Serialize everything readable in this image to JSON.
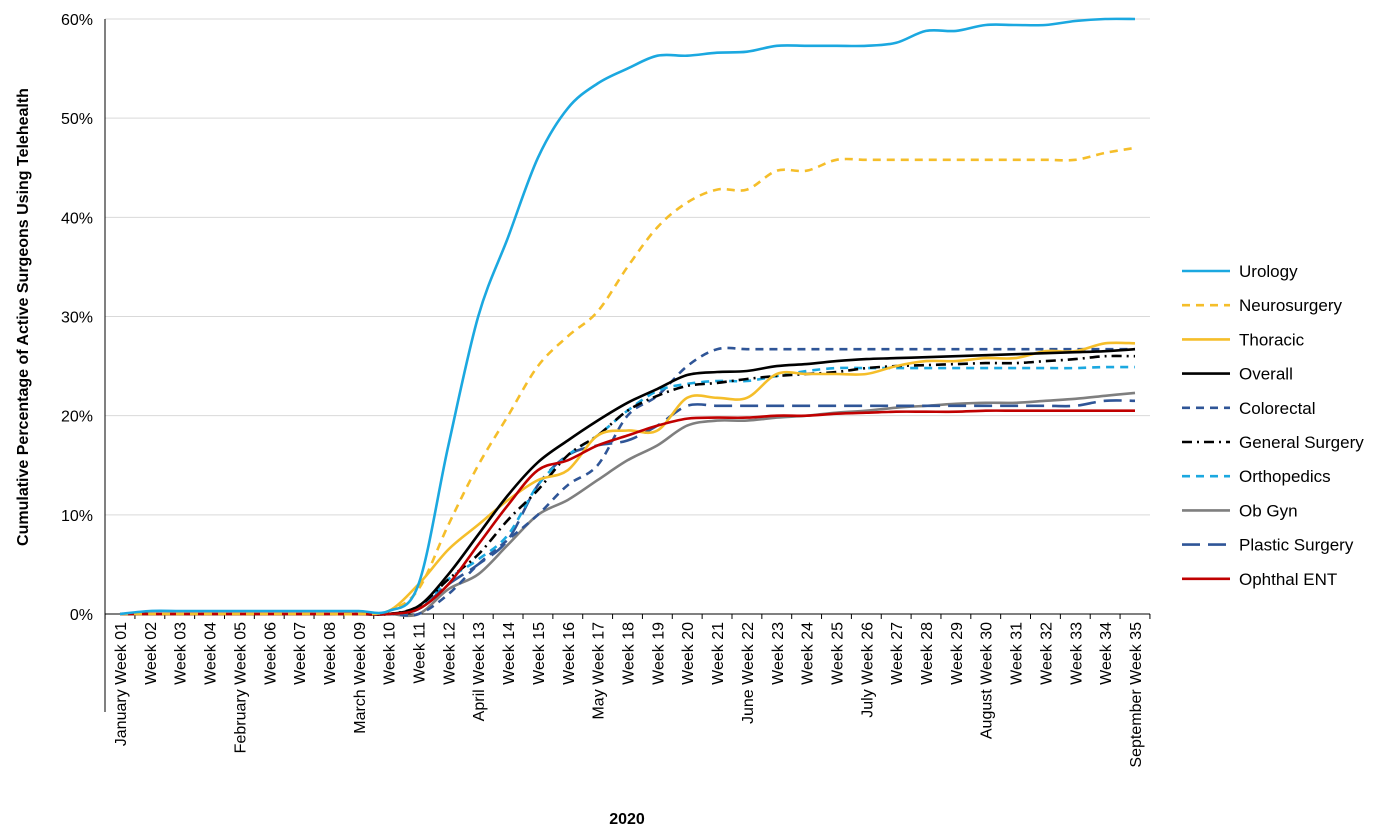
{
  "chart_data": {
    "type": "line",
    "title": "",
    "xlabel": "2020",
    "ylabel": "Cumulative Percentage of Active Surgeons Using Telehealth",
    "ylim": [
      0,
      60
    ],
    "y_ticks": [
      "0%",
      "10%",
      "20%",
      "30%",
      "40%",
      "50%",
      "60%"
    ],
    "grid": "horizontal",
    "legend_position": "right",
    "x_ticks": [
      "January Week 01",
      "Week 02",
      "Week 03",
      "Week 04",
      "February Week 05",
      "Week 06",
      "Week 07",
      "Week 08",
      "March Week 09",
      "Week 10",
      "Week 11",
      "Week 12",
      "April Week 13",
      "Week 14",
      "Week 15",
      "Week 16",
      "May Week 17",
      "Week 18",
      "Week 19",
      "Week 20",
      "Week 21",
      "June Week 22",
      "Week 23",
      "Week 24",
      "Week 25",
      "July Week 26",
      "Week 27",
      "Week 28",
      "Week 29",
      "August Week 30",
      "Week 31",
      "Week 32",
      "Week 33",
      "Week 34",
      "September Week 35"
    ],
    "series": [
      {
        "name": "Urology",
        "color": "#1ba8e0",
        "dash": "solid",
        "values": [
          0,
          0.3,
          0.3,
          0.3,
          0.3,
          0.3,
          0.3,
          0.3,
          0.3,
          0.3,
          3,
          17,
          30,
          38,
          46,
          51,
          53.5,
          55,
          56.3,
          56.3,
          56.6,
          56.7,
          57.3,
          57.3,
          57.3,
          57.3,
          57.6,
          58.8,
          58.8,
          59.4,
          59.4,
          59.4,
          59.8,
          60,
          60
        ]
      },
      {
        "name": "Neurosurgery",
        "color": "#f5be2a",
        "dash": "dashed",
        "values": [
          0,
          0,
          0,
          0,
          0,
          0,
          0,
          0,
          0,
          0.3,
          2.5,
          9,
          15,
          20,
          25,
          28,
          30.5,
          35,
          39,
          41.5,
          42.8,
          42.8,
          44.7,
          44.7,
          45.8,
          45.8,
          45.8,
          45.8,
          45.8,
          45.8,
          45.8,
          45.8,
          45.8,
          46.5,
          47
        ]
      },
      {
        "name": "Thoracic",
        "color": "#f5be2a",
        "dash": "solid",
        "values": [
          0,
          0,
          0,
          0,
          0,
          0,
          0,
          0,
          0,
          0.3,
          3,
          6.5,
          9,
          11.5,
          13.5,
          14.5,
          18,
          18.5,
          18.5,
          21.8,
          21.8,
          21.8,
          24.2,
          24.2,
          24.2,
          24.2,
          25,
          25.5,
          25.5,
          25.8,
          25.8,
          26.5,
          26.5,
          27.3,
          27.3
        ]
      },
      {
        "name": "Overall",
        "color": "#000000",
        "dash": "solid",
        "values": [
          0,
          0,
          0,
          0,
          0,
          0,
          0,
          0,
          0,
          0,
          0.8,
          4,
          8,
          12,
          15.3,
          17.5,
          19.5,
          21.3,
          22.7,
          24.1,
          24.4,
          24.5,
          25,
          25.2,
          25.5,
          25.7,
          25.8,
          25.9,
          26,
          26.1,
          26.2,
          26.3,
          26.4,
          26.5,
          26.7
        ]
      },
      {
        "name": "Colorectal",
        "color": "#2f5597",
        "dash": "dashed",
        "values": [
          0,
          0,
          0,
          0,
          0,
          0,
          0,
          0,
          0,
          0,
          0,
          2,
          5,
          7.5,
          10,
          13,
          15,
          20,
          22,
          25,
          26.7,
          26.7,
          26.7,
          26.7,
          26.7,
          26.7,
          26.7,
          26.7,
          26.7,
          26.7,
          26.7,
          26.7,
          26.7,
          26.7,
          26.7
        ]
      },
      {
        "name": "General Surgery",
        "color": "#000000",
        "dash": "dashdot",
        "values": [
          0,
          0,
          0,
          0,
          0,
          0,
          0,
          0,
          0,
          0,
          0.8,
          3.5,
          6,
          9.5,
          12.5,
          16,
          18,
          20.5,
          22,
          23,
          23.3,
          23.7,
          24,
          24.2,
          24.4,
          24.8,
          25,
          25.1,
          25.2,
          25.3,
          25.3,
          25.5,
          25.7,
          26,
          26
        ]
      },
      {
        "name": "Orthopedics",
        "color": "#1ba8e0",
        "dash": "dashed",
        "values": [
          0,
          0,
          0,
          0,
          0,
          0,
          0,
          0,
          0,
          0,
          0.5,
          3.5,
          5.5,
          8,
          13,
          16,
          18,
          20.5,
          22.5,
          23.2,
          23.5,
          23.5,
          24,
          24.5,
          24.8,
          24.8,
          24.8,
          24.8,
          24.8,
          24.8,
          24.8,
          24.8,
          24.8,
          24.9,
          24.9
        ]
      },
      {
        "name": "Ob Gyn",
        "color": "#7f7f7f",
        "dash": "solid",
        "values": [
          0,
          0,
          0,
          0,
          0,
          0,
          0,
          0,
          0,
          0,
          0,
          2.5,
          4,
          7,
          10,
          11.5,
          13.5,
          15.5,
          17,
          19,
          19.5,
          19.5,
          19.8,
          20,
          20.3,
          20.5,
          20.8,
          21,
          21.2,
          21.3,
          21.3,
          21.5,
          21.7,
          22,
          22.3
        ]
      },
      {
        "name": "Plastic Surgery",
        "color": "#2f5597",
        "dash": "longdash",
        "values": [
          0,
          0,
          0,
          0,
          0,
          0,
          0,
          0,
          0,
          0,
          0.5,
          3,
          5,
          7.5,
          13,
          16,
          17,
          17.5,
          19,
          21,
          21,
          21,
          21,
          21,
          21,
          21,
          21,
          21,
          21,
          21,
          21,
          21,
          21,
          21.5,
          21.5
        ]
      },
      {
        "name": "Ophthal ENT",
        "color": "#c00000",
        "dash": "solid",
        "values": [
          0,
          0,
          0,
          0,
          0,
          0,
          0,
          0,
          0,
          0,
          0.5,
          3,
          7,
          11,
          14.5,
          15.5,
          17,
          18,
          19,
          19.7,
          19.8,
          19.8,
          20,
          20,
          20.2,
          20.3,
          20.4,
          20.4,
          20.4,
          20.5,
          20.5,
          20.5,
          20.5,
          20.5,
          20.5
        ]
      }
    ]
  }
}
